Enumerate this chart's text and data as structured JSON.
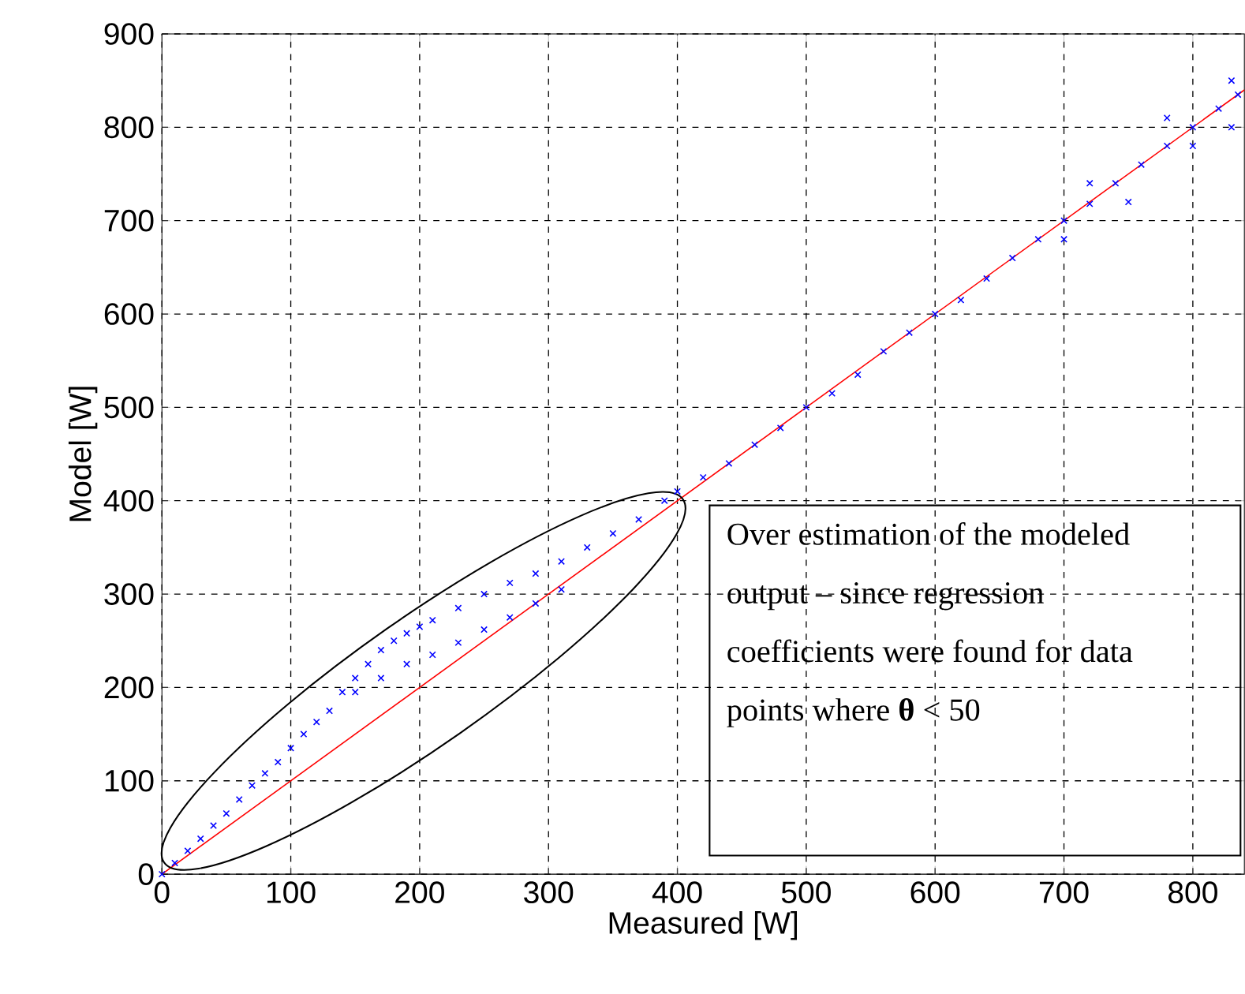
{
  "chart_data": {
    "type": "scatter",
    "xlabel": "Measured [W]",
    "ylabel": "Model [W]",
    "xlim": [
      0,
      840
    ],
    "ylim": [
      0,
      900
    ],
    "xticks": [
      0,
      100,
      200,
      300,
      400,
      500,
      600,
      700,
      800
    ],
    "yticks": [
      0,
      100,
      200,
      300,
      400,
      500,
      600,
      700,
      800,
      900
    ],
    "grid": true,
    "marker": "cross",
    "series": [
      {
        "color": "#0000ff",
        "x": [
          0,
          10,
          20,
          30,
          40,
          50,
          60,
          70,
          80,
          90,
          100,
          110,
          120,
          130,
          140,
          150,
          160,
          170,
          180,
          190,
          200,
          210,
          230,
          250,
          270,
          290,
          310,
          330,
          350,
          370,
          390,
          400,
          420,
          440,
          460,
          480,
          500,
          520,
          540,
          560,
          580,
          600,
          620,
          640,
          660,
          680,
          700,
          720,
          740,
          760,
          780,
          800,
          820,
          835,
          150,
          170,
          190,
          210,
          230,
          250,
          270,
          290,
          310,
          700,
          750,
          800,
          830,
          720,
          780,
          830
        ],
        "values": [
          0,
          12,
          25,
          38,
          52,
          65,
          80,
          95,
          108,
          120,
          135,
          150,
          163,
          175,
          195,
          210,
          225,
          240,
          250,
          258,
          265,
          272,
          285,
          300,
          312,
          322,
          335,
          350,
          365,
          380,
          400,
          410,
          425,
          440,
          460,
          478,
          500,
          515,
          535,
          560,
          580,
          600,
          615,
          638,
          660,
          680,
          700,
          718,
          740,
          760,
          780,
          800,
          820,
          835,
          195,
          210,
          225,
          235,
          248,
          262,
          275,
          290,
          305,
          680,
          720,
          780,
          800,
          740,
          810,
          850
        ]
      },
      {
        "type": "line",
        "color": "#ff0000",
        "marker": "none",
        "x": [
          0,
          840
        ],
        "values": [
          0,
          840
        ]
      }
    ],
    "annotations": [
      "Over estimation of the modeled output – since regression coefficients were found for data points where **θ** < 50"
    ]
  }
}
